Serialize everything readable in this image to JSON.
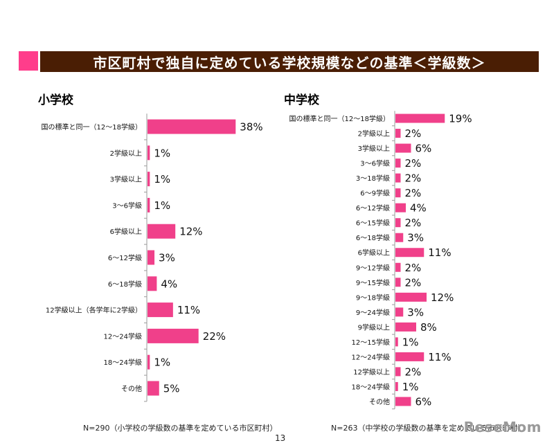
{
  "header": {
    "title": "市区町村で独自に定めている学校規模などの基準＜学級数＞",
    "accent_color": "#ff3d8b",
    "bar_color": "#4a1e04"
  },
  "chart_data": [
    {
      "type": "bar",
      "orientation": "horizontal",
      "title": "小学校",
      "bar_color": "#f0408a",
      "categories": [
        "国の標準と同一（12～18学級）",
        "2学級以上",
        "3学級以上",
        "3～6学級",
        "6学級以上",
        "6～12学級",
        "6～18学級",
        "12学級以上（各学年に2学級）",
        "12～24学級",
        "18～24学級",
        "その他"
      ],
      "values": [
        38,
        1,
        1,
        1,
        12,
        3,
        4,
        11,
        22,
        1,
        5
      ],
      "value_labels": [
        "38%",
        "1%",
        "1%",
        "1%",
        "12%",
        "3%",
        "4%",
        "11%",
        "22%",
        "1%",
        "5%"
      ],
      "xlabel": "",
      "ylabel": "",
      "xlim": [
        0,
        40
      ],
      "grid": false,
      "footnote": "N=290（小学校の学級数の基準を定めている市区町村）"
    },
    {
      "type": "bar",
      "orientation": "horizontal",
      "title": "中学校",
      "bar_color": "#f0408a",
      "categories": [
        "国の標準と同一（12～18学級）",
        "2学級以上",
        "3学級以上",
        "3～6学級",
        "3～18学級",
        "6～9学級",
        "6～12学級",
        "6～15学級",
        "6～18学級",
        "6学級以上",
        "9～12学級",
        "9～15学級",
        "9～18学級",
        "9～24学級",
        "9学級以上",
        "12～15学級",
        "12～24学級",
        "12学級以上",
        "18～24学級",
        "その他"
      ],
      "values": [
        19,
        2,
        6,
        2,
        2,
        2,
        4,
        2,
        3,
        11,
        2,
        2,
        12,
        3,
        8,
        1,
        11,
        2,
        1,
        6
      ],
      "value_labels": [
        "19%",
        "2%",
        "6%",
        "2%",
        "2%",
        "2%",
        "4%",
        "2%",
        "3%",
        "11%",
        "2%",
        "2%",
        "12%",
        "3%",
        "8%",
        "1%",
        "11%",
        "2%",
        "1%",
        "6%"
      ],
      "xlabel": "",
      "ylabel": "",
      "xlim": [
        0,
        40
      ],
      "grid": false,
      "footnote": "N=263（中学校の学級数の基準を定めている市区町村）"
    }
  ],
  "page_number": "13",
  "watermark": "ReseMom"
}
